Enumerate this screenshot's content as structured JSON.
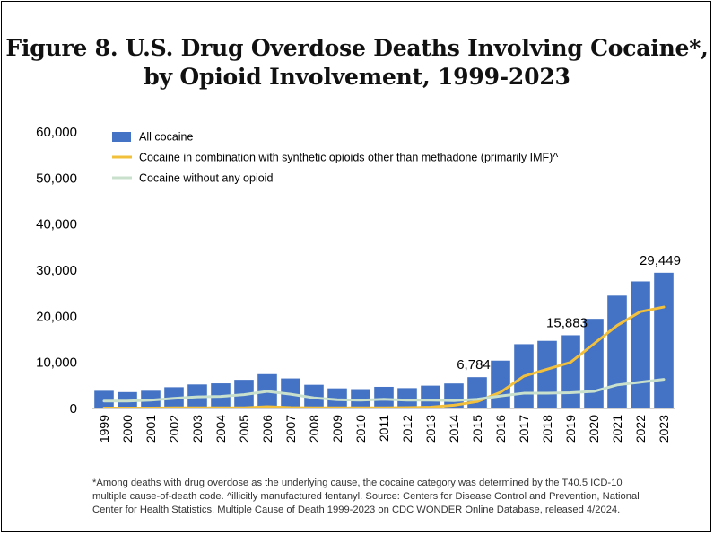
{
  "figure": {
    "title_line1": "Figure 8. U.S. Drug Overdose Deaths Involving Cocaine*,",
    "title_line2": "by Opioid Involvement, 1999-2023",
    "footnote_line1": "*Among deaths with drug overdose as the underlying cause, the cocaine category was determined by the T40.5 ICD-10",
    "footnote_line2": "multiple cause-of-death code. ^illicitly manufactured fentanyl. Source: Centers for Disease Control and Prevention, National",
    "footnote_line3": "Center for Health Statistics. Multiple Cause of Death 1999-2023 on CDC WONDER Online Database, released 4/2024."
  },
  "chart_data": {
    "type": "bar",
    "categories": [
      "1999",
      "2000",
      "2001",
      "2002",
      "2003",
      "2004",
      "2005",
      "2006",
      "2007",
      "2008",
      "2009",
      "2010",
      "2011",
      "2012",
      "2013",
      "2014",
      "2015",
      "2016",
      "2017",
      "2018",
      "2019",
      "2020",
      "2021",
      "2022",
      "2023"
    ],
    "ylim": [
      0,
      60000
    ],
    "yticks": [
      0,
      10000,
      20000,
      30000,
      40000,
      50000,
      60000
    ],
    "ytick_labels": [
      "0",
      "10,000",
      "20,000",
      "30,000",
      "40,000",
      "50,000",
      "60,000"
    ],
    "grid": false,
    "legend_position": "top-left",
    "series": [
      {
        "name": "All cocaine",
        "kind": "bar",
        "color": "#4472C4",
        "values": [
          3822,
          3544,
          3833,
          4599,
          5199,
          5443,
          6208,
          7448,
          6512,
          5129,
          4350,
          4183,
          4681,
          4404,
          4944,
          5415,
          6784,
          10375,
          13942,
          14666,
          15883,
          19447,
          24486,
          27569,
          29449
        ]
      },
      {
        "name": "Cocaine in combination with synthetic opioids other than methadone (primarily IMF)^",
        "kind": "line",
        "color": "#F2C03B",
        "values": [
          100,
          100,
          100,
          150,
          150,
          150,
          150,
          400,
          200,
          150,
          150,
          150,
          150,
          200,
          300,
          700,
          1500,
          3500,
          7000,
          8500,
          10000,
          14000,
          18000,
          21000,
          22000
        ]
      },
      {
        "name": "Cocaine without any opioid",
        "kind": "line",
        "color": "#C8E0CC",
        "values": [
          1600,
          1600,
          1800,
          2200,
          2500,
          2600,
          3000,
          3700,
          3100,
          2300,
          1900,
          1800,
          2000,
          1800,
          1800,
          1700,
          2000,
          2700,
          3300,
          3300,
          3400,
          3700,
          5100,
          5700,
          6300
        ]
      }
    ],
    "data_labels": [
      {
        "category": "2015",
        "text": "6,784"
      },
      {
        "category": "2019",
        "text": "15,883"
      },
      {
        "category": "2023",
        "text": "29,449"
      }
    ]
  }
}
